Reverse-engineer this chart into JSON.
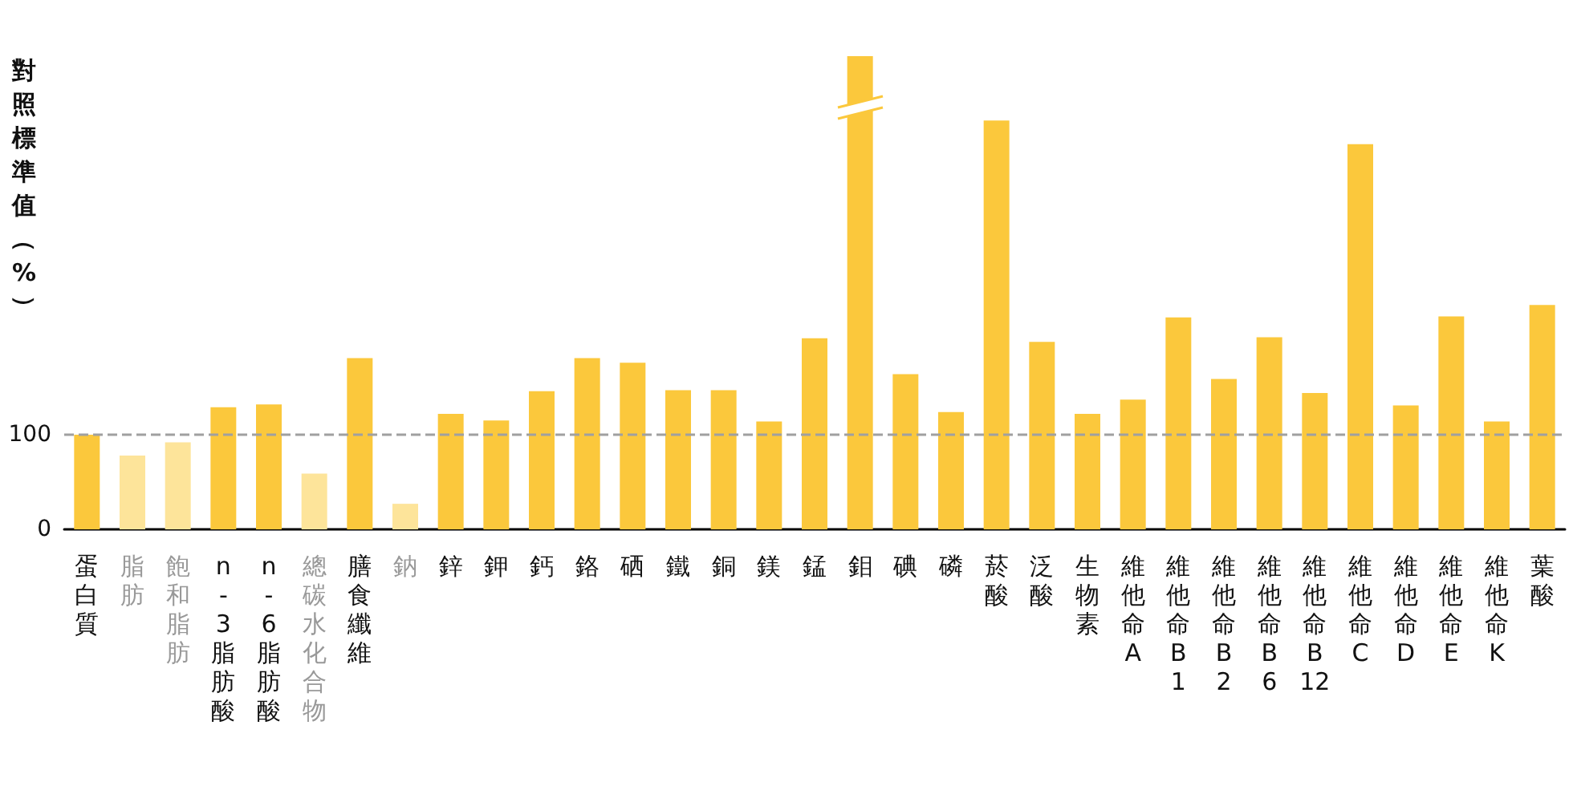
{
  "chart_data": {
    "type": "bar",
    "ylabel": "對照標準值（%）",
    "categories": [
      "蛋白質",
      "脂肪",
      "飽和脂肪",
      "n-3脂肪酸",
      "n-6脂肪酸",
      "總碳水化合物",
      "膳食纖維",
      "鈉",
      "鋅",
      "鉀",
      "鈣",
      "鉻",
      "硒",
      "鐵",
      "銅",
      "鎂",
      "錳",
      "鉬",
      "碘",
      "磷",
      "菸酸",
      "泛酸",
      "生物素",
      "維他命A",
      "維他命B1",
      "維他命B2",
      "維他命B6",
      "維他命B12",
      "維他命C",
      "維他命D",
      "維他命E",
      "維他命K",
      "葉酸"
    ],
    "values": [
      100,
      78,
      92,
      129,
      132,
      59,
      181,
      27,
      122,
      115,
      146,
      181,
      176,
      147,
      147,
      114,
      202,
      500,
      164,
      124,
      432,
      198,
      122,
      137,
      224,
      159,
      203,
      144,
      407,
      131,
      225,
      114,
      237
    ],
    "colors": [
      "#fbc83c",
      "#fde49a",
      "#fde49a",
      "#fbc83c",
      "#fbc83c",
      "#fde49a",
      "#fbc83c",
      "#fde49a",
      "#fbc83c",
      "#fbc83c",
      "#fbc83c",
      "#fbc83c",
      "#fbc83c",
      "#fbc83c",
      "#fbc83c",
      "#fbc83c",
      "#fbc83c",
      "#fbc83c",
      "#fbc83c",
      "#fbc83c",
      "#fbc83c",
      "#fbc83c",
      "#fbc83c",
      "#fbc83c",
      "#fbc83c",
      "#fbc83c",
      "#fbc83c",
      "#fbc83c",
      "#fbc83c",
      "#fbc83c",
      "#fbc83c",
      "#fbc83c",
      "#fbc83c"
    ],
    "ylim": [
      0,
      500
    ],
    "yticks": [
      0,
      100
    ],
    "ref_lines": [
      {
        "axis": "y",
        "value": 100,
        "label": null,
        "color": "#a0a0a0",
        "line_style": "dashed"
      }
    ],
    "grid": false
  }
}
